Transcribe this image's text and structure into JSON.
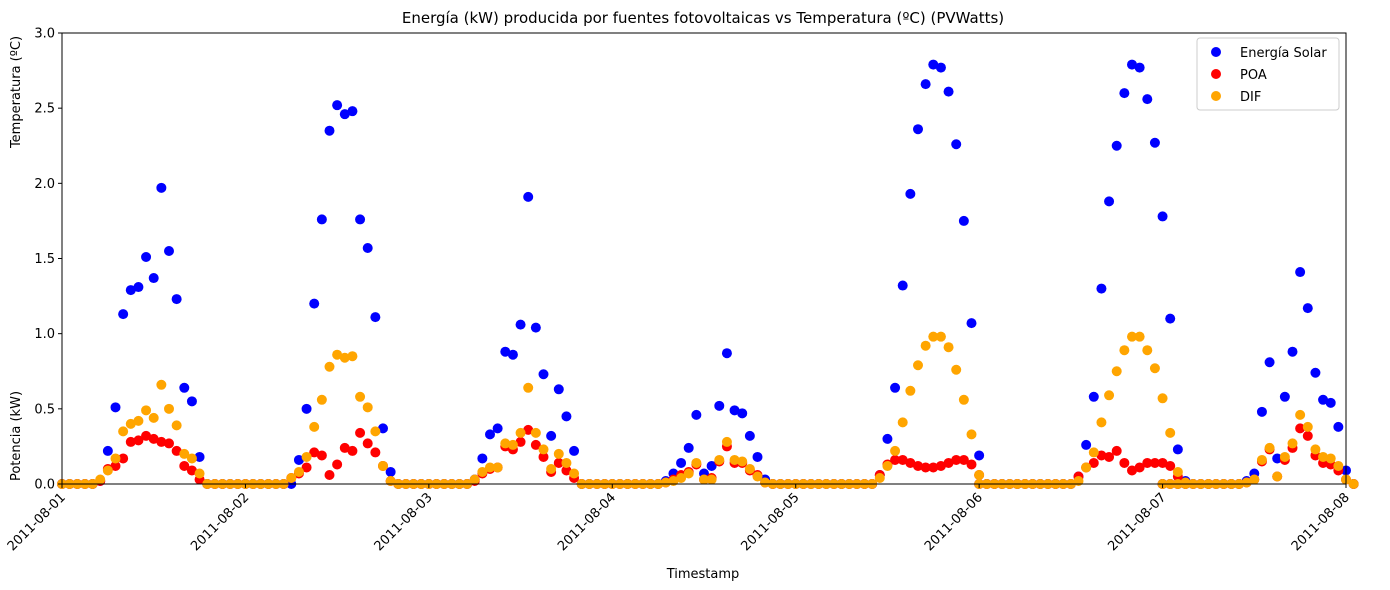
{
  "chart_data": {
    "type": "scatter",
    "title": "Energía (kW) producida por fuentes fotovoltaicas vs Temperatura (ºC) (PVWatts)",
    "xlabel": "Timestamp",
    "ylabel_top": "Temperatura (ºC)",
    "ylabel_bottom": "Potencia (kW)",
    "xlim": [
      "2011-08-01T00:00",
      "2011-08-08T00:00"
    ],
    "ylim": [
      0,
      3.0
    ],
    "xticks": [
      "2011-08-01",
      "2011-08-02",
      "2011-08-03",
      "2011-08-04",
      "2011-08-05",
      "2011-08-06",
      "2011-08-07",
      "2011-08-08"
    ],
    "yticks": [
      "0.0",
      "0.5",
      "1.0",
      "1.5",
      "2.0",
      "2.5",
      "3.0"
    ],
    "grid": false,
    "legend_position": "top-right",
    "days": [
      "2011-08-01",
      "2011-08-02",
      "2011-08-03",
      "2011-08-04",
      "2011-08-05",
      "2011-08-06",
      "2011-08-07"
    ],
    "series": [
      {
        "name": "Energía Solar",
        "color": "#0000ff",
        "daily": [
          [
            0,
            0,
            0,
            0,
            0,
            0.02,
            0.22,
            0.51,
            1.13,
            1.29,
            1.31,
            1.51,
            1.37,
            1.97,
            1.55,
            1.23,
            0.64,
            0.55,
            0.18,
            0,
            0,
            0,
            0,
            0
          ],
          [
            0,
            0,
            0,
            0,
            0,
            0,
            0,
            0.16,
            0.5,
            1.2,
            1.76,
            2.35,
            2.52,
            2.46,
            2.48,
            1.76,
            1.57,
            1.11,
            0.37,
            0.08,
            0,
            0,
            0,
            0
          ],
          [
            0,
            0,
            0,
            0,
            0,
            0,
            0.03,
            0.17,
            0.33,
            0.37,
            0.88,
            0.86,
            1.06,
            1.91,
            1.04,
            0.73,
            0.32,
            0.63,
            0.45,
            0.22,
            0,
            0,
            0,
            0
          ],
          [
            0,
            0,
            0,
            0,
            0,
            0,
            0,
            0.02,
            0.07,
            0.14,
            0.24,
            0.46,
            0.07,
            0.12,
            0.52,
            0.87,
            0.49,
            0.47,
            0.32,
            0.18,
            0.03,
            0,
            0,
            0
          ],
          [
            0,
            0,
            0,
            0,
            0,
            0,
            0,
            0,
            0,
            0,
            0,
            0.06,
            0.3,
            0.64,
            1.32,
            1.93,
            2.36,
            2.66,
            2.79,
            2.77,
            2.61,
            2.26,
            1.75,
            1.07,
            0.19
          ],
          [
            0,
            0,
            0,
            0,
            0,
            0,
            0,
            0,
            0,
            0,
            0,
            0,
            0,
            0.05,
            0.26,
            0.58,
            1.3,
            1.88,
            2.25,
            2.6,
            2.79,
            2.77,
            2.56,
            2.27,
            1.78,
            1.1,
            0.23,
            0.02
          ],
          [
            0,
            0,
            0,
            0,
            0,
            0,
            0,
            0,
            0,
            0,
            0,
            0.02,
            0.07,
            0.48,
            0.81,
            0.17,
            0.58,
            0.88,
            1.41,
            1.17,
            0.74,
            0.56,
            0.54,
            0.38,
            0.09,
            0
          ]
        ]
      },
      {
        "name": "POA",
        "color": "#ff0000",
        "daily": [
          [
            0,
            0,
            0,
            0,
            0,
            0.02,
            0.1,
            0.12,
            0.17,
            0.28,
            0.29,
            0.32,
            0.3,
            0.28,
            0.27,
            0.22,
            0.12,
            0.09,
            0.03,
            0,
            0,
            0,
            0,
            0
          ],
          [
            0,
            0,
            0,
            0,
            0,
            0,
            0.04,
            0.07,
            0.11,
            0.21,
            0.19,
            0.06,
            0.13,
            0.24,
            0.22,
            0.34,
            0.27,
            0.21,
            0.12,
            0.02,
            0,
            0,
            0,
            0
          ],
          [
            0,
            0,
            0,
            0,
            0,
            0,
            0.02,
            0.07,
            0.1,
            0.11,
            0.25,
            0.23,
            0.28,
            0.36,
            0.26,
            0.18,
            0.08,
            0.14,
            0.09,
            0.04,
            0,
            0,
            0,
            0
          ],
          [
            0,
            0,
            0,
            0,
            0,
            0,
            0,
            0.01,
            0.03,
            0.06,
            0.08,
            0.13,
            0.03,
            0.04,
            0.15,
            0.25,
            0.14,
            0.14,
            0.09,
            0.06,
            0.01,
            0,
            0,
            0
          ],
          [
            0,
            0,
            0,
            0,
            0,
            0,
            0,
            0,
            0,
            0,
            0,
            0.06,
            0.13,
            0.16,
            0.16,
            0.14,
            0.12,
            0.11,
            0.11,
            0.12,
            0.14,
            0.16,
            0.16,
            0.13,
            0.06
          ],
          [
            0,
            0,
            0,
            0,
            0,
            0,
            0,
            0,
            0,
            0,
            0,
            0,
            0,
            0.05,
            0.11,
            0.14,
            0.19,
            0.18,
            0.22,
            0.14,
            0.09,
            0.11,
            0.14,
            0.14,
            0.14,
            0.12,
            0.05,
            0.01
          ],
          [
            0,
            0,
            0,
            0,
            0,
            0,
            0,
            0,
            0,
            0,
            0,
            0.01,
            0.03,
            0.15,
            0.23,
            0.05,
            0.16,
            0.24,
            0.37,
            0.32,
            0.19,
            0.14,
            0.13,
            0.09,
            0.03,
            0
          ]
        ]
      },
      {
        "name": "DIF",
        "color": "#ffa500",
        "daily": [
          [
            0,
            0,
            0,
            0,
            0,
            0.03,
            0.09,
            0.17,
            0.35,
            0.4,
            0.42,
            0.49,
            0.44,
            0.66,
            0.5,
            0.39,
            0.2,
            0.17,
            0.07,
            0,
            0,
            0,
            0,
            0
          ],
          [
            0,
            0,
            0,
            0,
            0,
            0,
            0.04,
            0.08,
            0.18,
            0.38,
            0.56,
            0.78,
            0.86,
            0.84,
            0.85,
            0.58,
            0.51,
            0.35,
            0.12,
            0.02,
            0,
            0,
            0,
            0
          ],
          [
            0,
            0,
            0,
            0,
            0,
            0,
            0.03,
            0.08,
            0.11,
            0.11,
            0.27,
            0.26,
            0.34,
            0.64,
            0.34,
            0.23,
            0.1,
            0.2,
            0.14,
            0.07,
            0,
            0,
            0,
            0
          ],
          [
            0,
            0,
            0,
            0,
            0,
            0,
            0,
            0.01,
            0.02,
            0.04,
            0.07,
            0.14,
            0.03,
            0.03,
            0.16,
            0.28,
            0.16,
            0.15,
            0.1,
            0.05,
            0.01,
            0,
            0,
            0
          ],
          [
            0,
            0,
            0,
            0,
            0,
            0,
            0,
            0,
            0,
            0,
            0,
            0.04,
            0.12,
            0.22,
            0.41,
            0.62,
            0.79,
            0.92,
            0.98,
            0.98,
            0.91,
            0.76,
            0.56,
            0.33,
            0.06
          ],
          [
            0,
            0,
            0,
            0,
            0,
            0,
            0,
            0,
            0,
            0,
            0,
            0,
            0,
            0.02,
            0.11,
            0.21,
            0.41,
            0.59,
            0.75,
            0.89,
            0.98,
            0.98,
            0.89,
            0.77,
            0.57,
            0.34,
            0.08,
            0.01
          ],
          [
            0,
            0,
            0,
            0,
            0,
            0,
            0,
            0,
            0,
            0,
            0,
            0.01,
            0.03,
            0.16,
            0.24,
            0.05,
            0.18,
            0.27,
            0.46,
            0.38,
            0.23,
            0.18,
            0.17,
            0.12,
            0.03,
            0
          ]
        ]
      }
    ]
  }
}
